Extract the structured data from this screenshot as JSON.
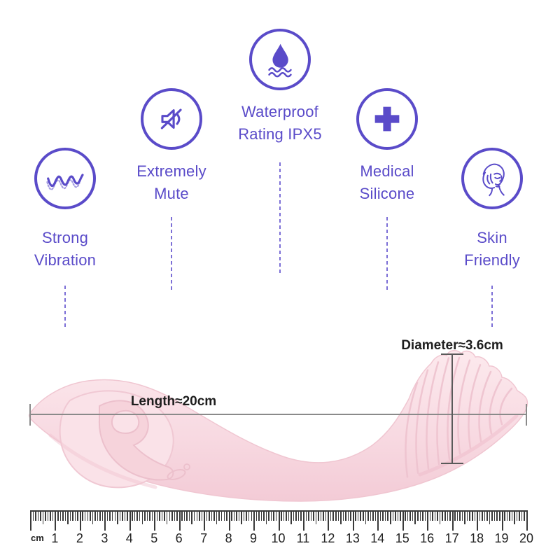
{
  "colors": {
    "purple": "#5a4bc9",
    "pink": "#f7d8e0",
    "pink_dark": "#eebfcb",
    "measure_gray": "#8a8a8a",
    "ruler_dark": "#3a3a3a",
    "text_black": "#1d1d1d"
  },
  "features": [
    {
      "id": "strong-vibration",
      "icon": "vibration-wave-icon",
      "label_lines": [
        "Strong",
        "Vibration"
      ]
    },
    {
      "id": "extremely-mute",
      "icon": "muted-speaker-icon",
      "label_lines": [
        "Extremely",
        "Mute"
      ]
    },
    {
      "id": "waterproof",
      "icon": "water-drop-icon",
      "label_lines": [
        "Waterproof",
        "Rating IPX5"
      ]
    },
    {
      "id": "medical-silicone",
      "icon": "medical-cross-icon",
      "label_lines": [
        "Medical",
        "Silicone"
      ]
    },
    {
      "id": "skin-friendly",
      "icon": "female-face-icon",
      "label_lines": [
        "Skin",
        "Friendly"
      ]
    }
  ],
  "measurements": {
    "length_label": "Length≈20cm",
    "diameter_label": "Diameter≈3.6cm"
  },
  "ruler": {
    "unit_label": "cm",
    "numbers": [
      "1",
      "2",
      "3",
      "4",
      "5",
      "6",
      "7",
      "8",
      "9",
      "10",
      "11",
      "12",
      "13",
      "14",
      "15",
      "16",
      "17",
      "18",
      "19",
      "20"
    ]
  }
}
